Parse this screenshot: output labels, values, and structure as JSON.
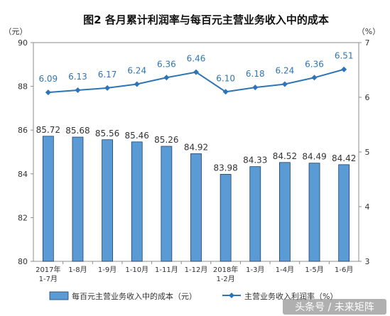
{
  "chart_data": {
    "type": "bar",
    "title": "图2  各月累计利润率与每百元主营业务收入中的成本",
    "left_unit": "（元）",
    "right_unit": "（%）",
    "categories": [
      [
        "2017年",
        "1-7月"
      ],
      [
        "1-8月"
      ],
      [
        "1-9月"
      ],
      [
        "1-10月"
      ],
      [
        "1-11月"
      ],
      [
        "1-12月"
      ],
      [
        "2018年",
        "1-2月"
      ],
      [
        "1-3月"
      ],
      [
        "1-4月"
      ],
      [
        "1-5月"
      ],
      [
        "1-6月"
      ]
    ],
    "y_left": {
      "min": 80,
      "max": 90,
      "ticks": [
        80,
        82,
        84,
        86,
        88,
        90
      ]
    },
    "y_right": {
      "min": 3,
      "max": 7,
      "ticks": [
        3,
        4,
        5,
        6,
        7
      ]
    },
    "series": [
      {
        "name": "每百元主营业务收入中的成本（元）",
        "kind": "bar",
        "axis": "left",
        "color": "#5b9bd5",
        "labels": [
          "85.72",
          "85.68",
          "85.56",
          "85.46",
          "85.26",
          "84.92",
          "83.98",
          "84.33",
          "84.52",
          "84.49",
          "84.42"
        ],
        "values": [
          85.72,
          85.68,
          85.56,
          85.46,
          85.26,
          84.92,
          83.98,
          84.33,
          84.52,
          84.49,
          84.42
        ]
      },
      {
        "name": "主营业务收入利润率（%）",
        "kind": "line",
        "axis": "right",
        "color": "#2e75b6",
        "labels": [
          "6.09",
          "6.13",
          "6.17",
          "6.24",
          "6.36",
          "6.46",
          "6.10",
          "6.18",
          "6.24",
          "6.36",
          "6.51"
        ],
        "values": [
          6.09,
          6.13,
          6.17,
          6.24,
          6.36,
          6.46,
          6.1,
          6.18,
          6.24,
          6.36,
          6.51
        ]
      }
    ]
  },
  "watermark": "头条号 / 未来矩阵"
}
